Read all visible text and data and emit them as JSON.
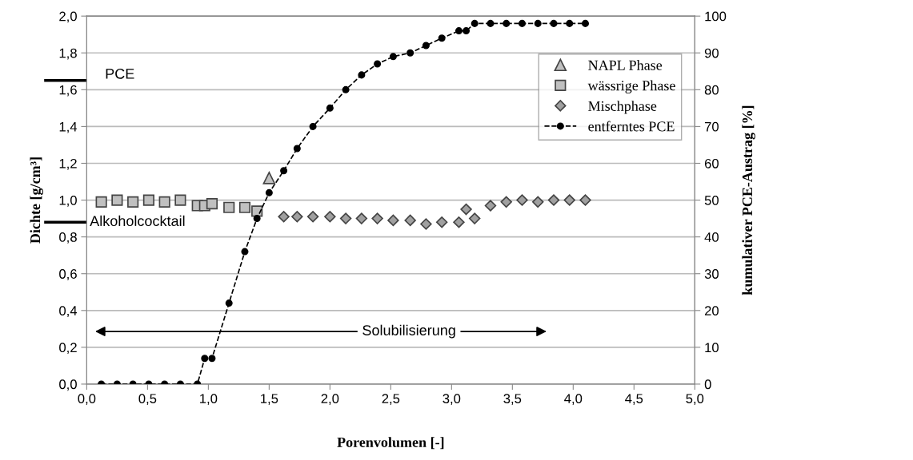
{
  "chart_data": {
    "type": "scatter",
    "xlabel": "Porenvolumen [-]",
    "ylabel": "Dichte [g/cm³]",
    "y2label": "kumulativer PCE-Austrag [%]",
    "xlim": [
      0,
      5
    ],
    "xticks": [
      {
        "value": 0,
        "label": "0,0"
      },
      {
        "value": 0.5,
        "label": "0,5"
      },
      {
        "value": 1,
        "label": "1,0"
      },
      {
        "value": 1.5,
        "label": "1,5"
      },
      {
        "value": 2,
        "label": "2,0"
      },
      {
        "value": 2.5,
        "label": "2,5"
      },
      {
        "value": 3,
        "label": "3,0"
      },
      {
        "value": 3.5,
        "label": "3,5"
      },
      {
        "value": 4,
        "label": "4,0"
      },
      {
        "value": 4.5,
        "label": "4,5"
      },
      {
        "value": 5,
        "label": "5,0"
      }
    ],
    "ylim": [
      0,
      2
    ],
    "yticks": [
      {
        "value": 0,
        "label": "0,0"
      },
      {
        "value": 0.2,
        "label": "0,2"
      },
      {
        "value": 0.4,
        "label": "0,4"
      },
      {
        "value": 0.6,
        "label": "0,6"
      },
      {
        "value": 0.8,
        "label": "0,8"
      },
      {
        "value": 1,
        "label": "1,0"
      },
      {
        "value": 1.2,
        "label": "1,2"
      },
      {
        "value": 1.4,
        "label": "1,4"
      },
      {
        "value": 1.6,
        "label": "1,6"
      },
      {
        "value": 1.8,
        "label": "1,8"
      },
      {
        "value": 2,
        "label": "2,0"
      }
    ],
    "y2lim": [
      0,
      100
    ],
    "y2ticks": [
      0,
      10,
      20,
      30,
      40,
      50,
      60,
      70,
      80,
      90,
      100
    ],
    "grid": "y",
    "legend": "right",
    "series": [
      {
        "name": "NAPL Phase",
        "marker": "triangle",
        "color": "#c0c0c0",
        "x": [
          1.5
        ],
        "values": [
          1.12
        ]
      },
      {
        "name": "wässrige Phase",
        "marker": "square",
        "color": "#c0c0c0",
        "x": [
          0.12,
          0.25,
          0.38,
          0.51,
          0.64,
          0.77,
          0.91,
          0.97,
          1.03,
          1.17,
          1.3,
          1.4
        ],
        "values": [
          0.99,
          1.0,
          0.99,
          1.0,
          0.99,
          1.0,
          0.97,
          0.97,
          0.98,
          0.96,
          0.96,
          0.94
        ]
      },
      {
        "name": "Mischphase",
        "marker": "diamond",
        "color": "#a0a0a0",
        "x": [
          1.62,
          1.73,
          1.86,
          2.0,
          2.13,
          2.26,
          2.39,
          2.52,
          2.66,
          2.79,
          2.92,
          3.06,
          3.12,
          3.19,
          3.32,
          3.45,
          3.58,
          3.71,
          3.84,
          3.97,
          4.1
        ],
        "values": [
          0.91,
          0.91,
          0.91,
          0.91,
          0.9,
          0.9,
          0.9,
          0.89,
          0.89,
          0.87,
          0.88,
          0.88,
          0.95,
          0.9,
          0.97,
          0.99,
          1.0,
          0.99,
          1.0,
          1.0,
          1.0
        ]
      },
      {
        "name": "entferntes PCE",
        "type": "line",
        "marker": "circle",
        "line_style": "dashed",
        "axis": "y2",
        "color": "#000000",
        "x": [
          0.12,
          0.25,
          0.38,
          0.51,
          0.64,
          0.77,
          0.91,
          0.97,
          1.03,
          1.17,
          1.3,
          1.4,
          1.5,
          1.62,
          1.73,
          1.86,
          2.0,
          2.13,
          2.26,
          2.39,
          2.52,
          2.66,
          2.79,
          2.92,
          3.06,
          3.12,
          3.19,
          3.32,
          3.45,
          3.58,
          3.71,
          3.84,
          3.97,
          4.1
        ],
        "values": [
          0,
          0,
          0,
          0,
          0,
          0,
          0,
          7,
          7,
          22,
          36,
          45,
          52,
          58,
          64,
          70,
          75,
          80,
          84,
          87,
          89,
          90,
          92,
          94,
          96,
          96,
          98,
          98,
          98,
          98,
          98,
          98,
          98,
          98
        ]
      }
    ],
    "ref_lines": [
      {
        "axis": "y",
        "value": 1.65,
        "label": "PCE",
        "color": "#000000"
      },
      {
        "axis": "y",
        "value": 0.88,
        "label": "Alkoholcocktail",
        "color": "#000000"
      }
    ],
    "annotations": [
      "Solubilisierung"
    ]
  }
}
